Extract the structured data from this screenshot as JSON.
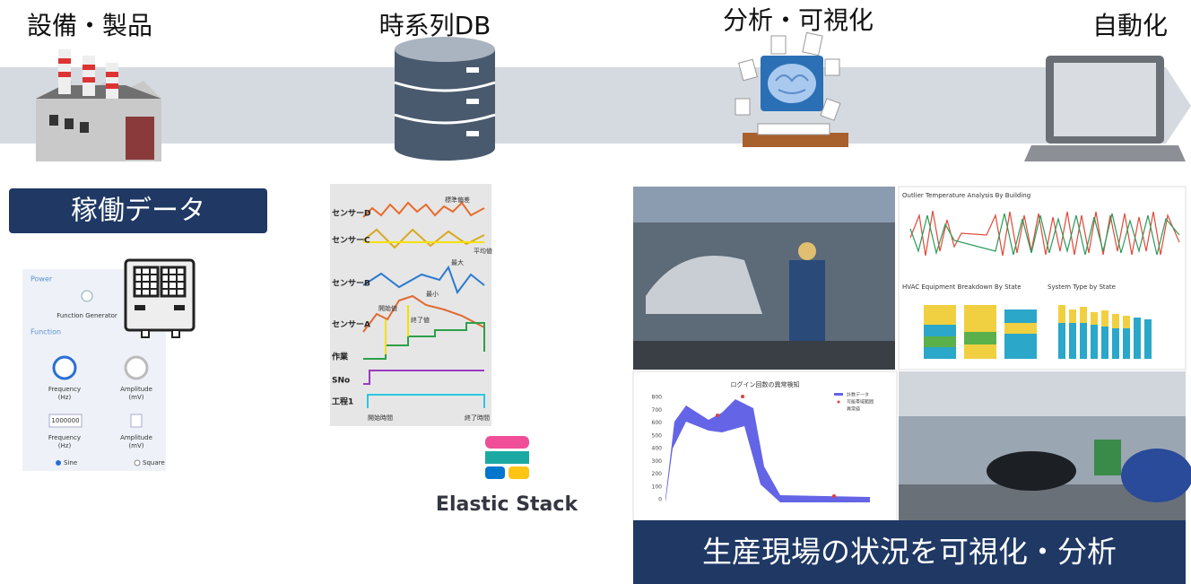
{
  "stages": [
    {
      "label": "設備・製品"
    },
    {
      "label": "時系列DB"
    },
    {
      "label": "分析・可視化"
    },
    {
      "label": "自動化"
    }
  ],
  "operation_data": {
    "label": "稼働データ",
    "panel": {
      "power": "Power",
      "generator": "Function Generator",
      "function": "Function",
      "frequency": "Frequency",
      "frequency_unit": "(Hz)",
      "amplitude": "Amplitude",
      "amplitude_unit": "(mV)",
      "frequency_input": "1000000",
      "sine": "Sine",
      "square": "Square"
    }
  },
  "sensor_chart": {
    "rows": [
      "センサーD",
      "センサーC",
      "センサーB",
      "センサーA",
      "作業",
      "SNo",
      "工程1"
    ],
    "annotations": {
      "std": "標準偏差",
      "mean": "平均値",
      "max": "最大",
      "min": "最小",
      "start_value": "開始値",
      "end_value": "終了値",
      "start_time": "開始時間",
      "end_time": "終了時間"
    }
  },
  "elastic": {
    "label": "Elastic Stack"
  },
  "dashboards": {
    "outlier_title": "Outlier Temperature Analysis By Building",
    "hvac_title": "HVAC Equipment Breakdown By State",
    "system_title": "System Type by State",
    "login_title": "ログイン回数の異常検知",
    "login_yticks": [
      "0",
      "100",
      "200",
      "300",
      "400",
      "500",
      "600",
      "700",
      "800"
    ],
    "login_legend": [
      "計数データ",
      "可能帯域範囲",
      "異常値"
    ]
  },
  "footer": {
    "label": "生産現場の状況を可視化・分析"
  }
}
